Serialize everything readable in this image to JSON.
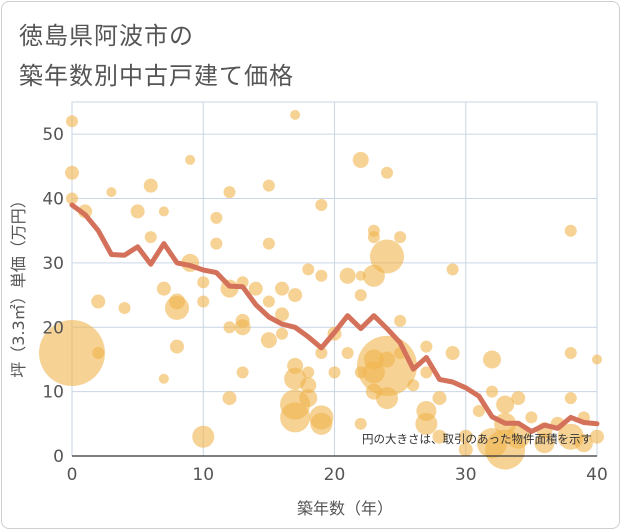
{
  "title_lines": [
    "徳島県阿波市の",
    "築年数別中古戸建て価格"
  ],
  "chart_data": {
    "type": "scatter",
    "xlabel": "築年数（年）",
    "ylabel": "坪（3.3㎡）単価（万円）",
    "xlim": [
      0,
      40
    ],
    "ylim": [
      0,
      55
    ],
    "x_ticks": [
      0,
      10,
      20,
      30,
      40
    ],
    "y_ticks": [
      0,
      10,
      20,
      30,
      40,
      50
    ],
    "grid": true,
    "note": "円の大きさは、取引のあった物件面積を示す",
    "colors": {
      "bubble": "#f0b44c",
      "line": "#d4715a",
      "grid": "#c9d6e6"
    },
    "bubbles": [
      {
        "x": 0,
        "y": 52,
        "r": 6
      },
      {
        "x": 0,
        "y": 44,
        "r": 7
      },
      {
        "x": 0,
        "y": 40,
        "r": 6
      },
      {
        "x": 0,
        "y": 16,
        "r": 33
      },
      {
        "x": 1,
        "y": 38,
        "r": 7
      },
      {
        "x": 2,
        "y": 24,
        "r": 7
      },
      {
        "x": 2,
        "y": 16,
        "r": 6
      },
      {
        "x": 3,
        "y": 41,
        "r": 5
      },
      {
        "x": 4,
        "y": 23,
        "r": 6
      },
      {
        "x": 5,
        "y": 38,
        "r": 7
      },
      {
        "x": 6,
        "y": 42,
        "r": 7
      },
      {
        "x": 6,
        "y": 34,
        "r": 6
      },
      {
        "x": 7,
        "y": 38,
        "r": 5
      },
      {
        "x": 7,
        "y": 26,
        "r": 7
      },
      {
        "x": 7,
        "y": 12,
        "r": 5
      },
      {
        "x": 8,
        "y": 24,
        "r": 8
      },
      {
        "x": 8,
        "y": 23,
        "r": 12
      },
      {
        "x": 8,
        "y": 17,
        "r": 7
      },
      {
        "x": 9,
        "y": 46,
        "r": 5
      },
      {
        "x": 9,
        "y": 30,
        "r": 9
      },
      {
        "x": 10,
        "y": 27,
        "r": 6
      },
      {
        "x": 10,
        "y": 24,
        "r": 6
      },
      {
        "x": 10,
        "y": 3,
        "r": 11
      },
      {
        "x": 11,
        "y": 37,
        "r": 6
      },
      {
        "x": 11,
        "y": 33,
        "r": 6
      },
      {
        "x": 12,
        "y": 41,
        "r": 6
      },
      {
        "x": 12,
        "y": 26,
        "r": 9
      },
      {
        "x": 12,
        "y": 20,
        "r": 6
      },
      {
        "x": 12,
        "y": 9,
        "r": 7
      },
      {
        "x": 13,
        "y": 27,
        "r": 6
      },
      {
        "x": 13,
        "y": 21,
        "r": 7
      },
      {
        "x": 13,
        "y": 20,
        "r": 8
      },
      {
        "x": 13,
        "y": 13,
        "r": 6
      },
      {
        "x": 14,
        "y": 26,
        "r": 7
      },
      {
        "x": 15,
        "y": 42,
        "r": 6
      },
      {
        "x": 15,
        "y": 33,
        "r": 6
      },
      {
        "x": 15,
        "y": 24,
        "r": 6
      },
      {
        "x": 15,
        "y": 18,
        "r": 8
      },
      {
        "x": 16,
        "y": 26,
        "r": 7
      },
      {
        "x": 16,
        "y": 22,
        "r": 7
      },
      {
        "x": 16,
        "y": 19,
        "r": 6
      },
      {
        "x": 17,
        "y": 53,
        "r": 5
      },
      {
        "x": 17,
        "y": 25,
        "r": 7
      },
      {
        "x": 17,
        "y": 14,
        "r": 8
      },
      {
        "x": 17,
        "y": 12,
        "r": 11
      },
      {
        "x": 17,
        "y": 8,
        "r": 15
      },
      {
        "x": 17,
        "y": 6,
        "r": 15
      },
      {
        "x": 18,
        "y": 29,
        "r": 6
      },
      {
        "x": 18,
        "y": 13,
        "r": 6
      },
      {
        "x": 18,
        "y": 11,
        "r": 8
      },
      {
        "x": 18,
        "y": 9,
        "r": 9
      },
      {
        "x": 19,
        "y": 39,
        "r": 6
      },
      {
        "x": 19,
        "y": 28,
        "r": 6
      },
      {
        "x": 19,
        "y": 16,
        "r": 6
      },
      {
        "x": 19,
        "y": 6,
        "r": 12
      },
      {
        "x": 19,
        "y": 5,
        "r": 11
      },
      {
        "x": 20,
        "y": 19,
        "r": 7
      },
      {
        "x": 20,
        "y": 13,
        "r": 6
      },
      {
        "x": 21,
        "y": 28,
        "r": 8
      },
      {
        "x": 21,
        "y": 16,
        "r": 6
      },
      {
        "x": 22,
        "y": 46,
        "r": 8
      },
      {
        "x": 22,
        "y": 28,
        "r": 5
      },
      {
        "x": 22,
        "y": 25,
        "r": 6
      },
      {
        "x": 22,
        "y": 13,
        "r": 6
      },
      {
        "x": 22,
        "y": 5,
        "r": 6
      },
      {
        "x": 23,
        "y": 35,
        "r": 6
      },
      {
        "x": 23,
        "y": 34,
        "r": 6
      },
      {
        "x": 23,
        "y": 28,
        "r": 11
      },
      {
        "x": 23,
        "y": 15,
        "r": 10
      },
      {
        "x": 23,
        "y": 13,
        "r": 11
      },
      {
        "x": 23,
        "y": 10,
        "r": 8
      },
      {
        "x": 24,
        "y": 44,
        "r": 6
      },
      {
        "x": 24,
        "y": 31,
        "r": 17
      },
      {
        "x": 24,
        "y": 15,
        "r": 8
      },
      {
        "x": 24,
        "y": 14,
        "r": 30
      },
      {
        "x": 24,
        "y": 9,
        "r": 11
      },
      {
        "x": 25,
        "y": 34,
        "r": 6
      },
      {
        "x": 25,
        "y": 21,
        "r": 6
      },
      {
        "x": 25,
        "y": 16,
        "r": 6
      },
      {
        "x": 26,
        "y": 11,
        "r": 6
      },
      {
        "x": 27,
        "y": 17,
        "r": 6
      },
      {
        "x": 27,
        "y": 13,
        "r": 6
      },
      {
        "x": 27,
        "y": 7,
        "r": 10
      },
      {
        "x": 27,
        "y": 5,
        "r": 11
      },
      {
        "x": 28,
        "y": 9,
        "r": 7
      },
      {
        "x": 28,
        "y": 3,
        "r": 7
      },
      {
        "x": 29,
        "y": 29,
        "r": 6
      },
      {
        "x": 29,
        "y": 16,
        "r": 7
      },
      {
        "x": 30,
        "y": 3,
        "r": 7
      },
      {
        "x": 30,
        "y": 1,
        "r": 7
      },
      {
        "x": 31,
        "y": 7,
        "r": 6
      },
      {
        "x": 32,
        "y": 15,
        "r": 9
      },
      {
        "x": 32,
        "y": 10,
        "r": 6
      },
      {
        "x": 32,
        "y": 2,
        "r": 15
      },
      {
        "x": 33,
        "y": 8,
        "r": 9
      },
      {
        "x": 33,
        "y": 5,
        "r": 11
      },
      {
        "x": 33,
        "y": 1,
        "r": 20
      },
      {
        "x": 34,
        "y": 9,
        "r": 7
      },
      {
        "x": 34,
        "y": 3,
        "r": 12
      },
      {
        "x": 35,
        "y": 6,
        "r": 6
      },
      {
        "x": 36,
        "y": 4,
        "r": 8
      },
      {
        "x": 36,
        "y": 2,
        "r": 10
      },
      {
        "x": 37,
        "y": 5,
        "r": 7
      },
      {
        "x": 38,
        "y": 35,
        "r": 6
      },
      {
        "x": 38,
        "y": 16,
        "r": 6
      },
      {
        "x": 38,
        "y": 9,
        "r": 6
      },
      {
        "x": 38,
        "y": 3,
        "r": 13
      },
      {
        "x": 39,
        "y": 6,
        "r": 6
      },
      {
        "x": 39,
        "y": 2,
        "r": 9
      },
      {
        "x": 40,
        "y": 15,
        "r": 5
      },
      {
        "x": 40,
        "y": 3,
        "r": 7
      }
    ],
    "trend": [
      {
        "x": 0,
        "y": 39
      },
      {
        "x": 1,
        "y": 37.5
      },
      {
        "x": 2,
        "y": 35
      },
      {
        "x": 3,
        "y": 31.3
      },
      {
        "x": 4,
        "y": 31.2
      },
      {
        "x": 5,
        "y": 32.5
      },
      {
        "x": 6,
        "y": 29.8
      },
      {
        "x": 7,
        "y": 33
      },
      {
        "x": 8,
        "y": 30
      },
      {
        "x": 9,
        "y": 29.6
      },
      {
        "x": 10,
        "y": 28.9
      },
      {
        "x": 11,
        "y": 28.5
      },
      {
        "x": 12,
        "y": 26.4
      },
      {
        "x": 13,
        "y": 26.3
      },
      {
        "x": 14,
        "y": 23.5
      },
      {
        "x": 15,
        "y": 21.6
      },
      {
        "x": 16,
        "y": 20.5
      },
      {
        "x": 17,
        "y": 20
      },
      {
        "x": 18,
        "y": 18.5
      },
      {
        "x": 19,
        "y": 16.8
      },
      {
        "x": 20,
        "y": 19.2
      },
      {
        "x": 21,
        "y": 21.8
      },
      {
        "x": 22,
        "y": 19.8
      },
      {
        "x": 23,
        "y": 21.8
      },
      {
        "x": 24,
        "y": 19.8
      },
      {
        "x": 25,
        "y": 17.6
      },
      {
        "x": 26,
        "y": 13.5
      },
      {
        "x": 27,
        "y": 15.3
      },
      {
        "x": 28,
        "y": 11.9
      },
      {
        "x": 29,
        "y": 11.5
      },
      {
        "x": 30,
        "y": 10.6
      },
      {
        "x": 31,
        "y": 9.3
      },
      {
        "x": 32,
        "y": 6.1
      },
      {
        "x": 33,
        "y": 5.1
      },
      {
        "x": 34,
        "y": 5.1
      },
      {
        "x": 35,
        "y": 3.8
      },
      {
        "x": 36,
        "y": 4.8
      },
      {
        "x": 37,
        "y": 4.3
      },
      {
        "x": 38,
        "y": 6
      },
      {
        "x": 39,
        "y": 5.2
      },
      {
        "x": 40,
        "y": 5
      }
    ]
  }
}
